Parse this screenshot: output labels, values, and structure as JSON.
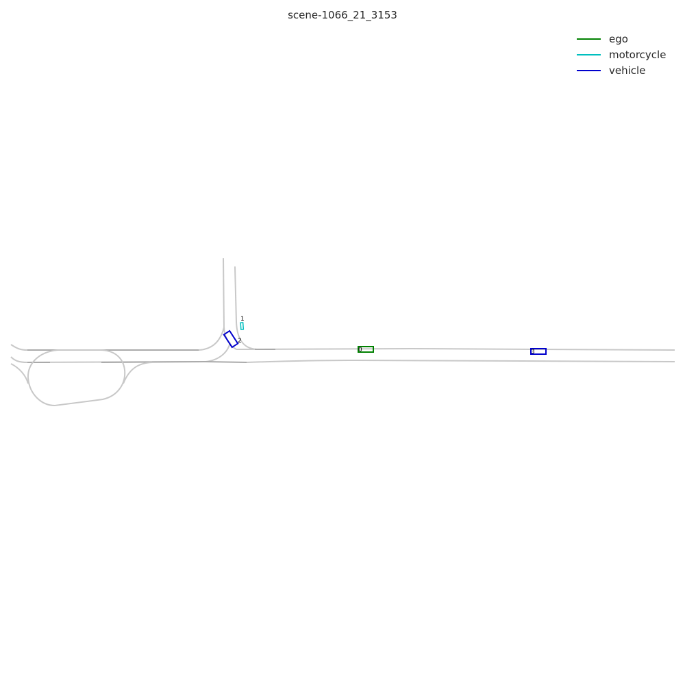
{
  "title": "scene-1066_21_3153",
  "legend": [
    {
      "label": "ego",
      "color": "#008000"
    },
    {
      "label": "motorcycle",
      "color": "#00bfbf"
    },
    {
      "label": "vehicle",
      "color": "#0000cd"
    }
  ],
  "agents": [
    {
      "id": "0",
      "category": "ego"
    },
    {
      "id": "1",
      "category": "motorcycle"
    },
    {
      "id": "2",
      "category": "vehicle"
    },
    {
      "id": "3",
      "category": "vehicle"
    }
  ]
}
